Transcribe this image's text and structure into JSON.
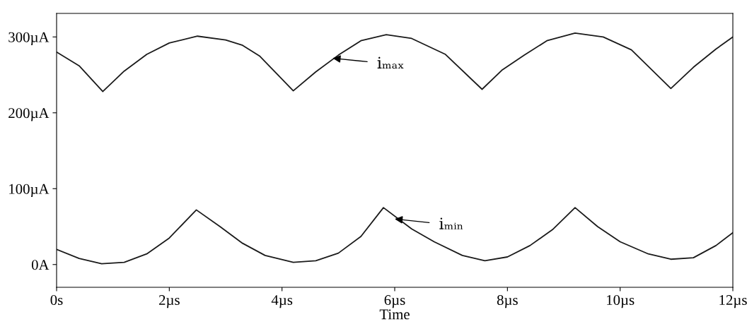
{
  "chart_data": {
    "type": "line",
    "xlabel": "Time",
    "xlim": [
      0,
      12
    ],
    "ylim": [
      -30,
      331
    ],
    "xticks": [
      {
        "value": 0,
        "label": "0s"
      },
      {
        "value": 2,
        "label": "2µs"
      },
      {
        "value": 4,
        "label": "4µs"
      },
      {
        "value": 6,
        "label": "6µs"
      },
      {
        "value": 8,
        "label": "8µs"
      },
      {
        "value": 10,
        "label": "10µs"
      },
      {
        "value": 12,
        "label": "12µs"
      }
    ],
    "yticks": [
      {
        "value": 0,
        "label": "0A"
      },
      {
        "value": 100,
        "label": "100µA"
      },
      {
        "value": 200,
        "label": "200µA"
      },
      {
        "value": 300,
        "label": "300µA"
      }
    ],
    "grid": false,
    "legend": false,
    "series": [
      {
        "color": "#1a1a1a",
        "x": [
          0,
          0.4,
          0.82,
          1.2,
          1.6,
          2.0,
          2.5,
          3.0,
          3.3,
          3.6,
          3.9,
          4.2,
          4.6,
          5.0,
          5.4,
          5.85,
          6.3,
          6.9,
          7.55,
          7.9,
          8.3,
          8.7,
          9.2,
          9.7,
          10.2,
          10.9,
          11.3,
          11.7,
          12
        ],
        "values": [
          280,
          262,
          228,
          255,
          277,
          292,
          301,
          296,
          289,
          275,
          252,
          229,
          254,
          276,
          295,
          303,
          298,
          277,
          231,
          256,
          276,
          295,
          305,
          300,
          283,
          232,
          260,
          284,
          300
        ]
      },
      {
        "color": "#1a1a1a",
        "x": [
          0,
          0.4,
          0.8,
          1.2,
          1.6,
          2.0,
          2.48,
          2.9,
          3.3,
          3.7,
          4.2,
          4.6,
          5.0,
          5.4,
          5.8,
          6.3,
          6.7,
          7.2,
          7.6,
          8.0,
          8.4,
          8.8,
          9.2,
          9.6,
          10.0,
          10.5,
          10.9,
          11.3,
          11.7,
          12
        ],
        "values": [
          20,
          8,
          1,
          3,
          14,
          35,
          72,
          50,
          28,
          12,
          3,
          5,
          15,
          37,
          75,
          47,
          30,
          12,
          5,
          10,
          25,
          46,
          75,
          50,
          30,
          14,
          7,
          9,
          25,
          42
        ]
      }
    ],
    "annotations": [
      {
        "text": "iₘₐₓ",
        "x": 4.9,
        "y": 272
      },
      {
        "text": "iₘᵢₙ",
        "x": 6.0,
        "y": 60
      }
    ]
  }
}
